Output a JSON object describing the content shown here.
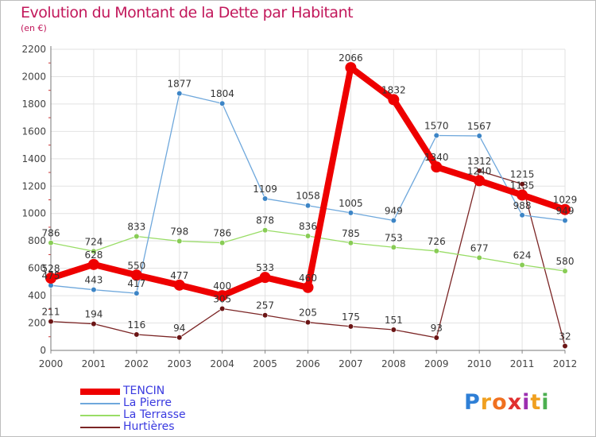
{
  "title": "Evolution du Montant de la Dette par Habitant",
  "subtitle": "(en €)",
  "logo": {
    "text": "Proxiti",
    "letters": [
      {
        "ch": "P",
        "color": "#2e7fd6"
      },
      {
        "ch": "r",
        "color": "#f0a020"
      },
      {
        "ch": "o",
        "color": "#f07020"
      },
      {
        "ch": "x",
        "color": "#e03030"
      },
      {
        "ch": "i",
        "color": "#9c2fb0"
      },
      {
        "ch": "t",
        "color": "#f0a020"
      },
      {
        "ch": "i",
        "color": "#4caf50"
      }
    ]
  },
  "legend": [
    {
      "name": "TENCIN",
      "color": "#ee0000",
      "width": 8
    },
    {
      "name": "La Pierre",
      "color": "#6fa8dc",
      "width": 2
    },
    {
      "name": "La Terrasse",
      "color": "#99dd66",
      "width": 2
    },
    {
      "name": "Hurtières",
      "color": "#7b2525",
      "width": 2
    }
  ],
  "chart_data": {
    "type": "line",
    "title": "Evolution du Montant de la Dette par Habitant",
    "subtitle": "(en €)",
    "x": [
      "2000",
      "2001",
      "2002",
      "2003",
      "2004",
      "2005",
      "2006",
      "2007",
      "2008",
      "2009",
      "2010",
      "2011",
      "2012"
    ],
    "ylim": [
      0,
      2200
    ],
    "yticks": [
      0,
      200,
      400,
      600,
      800,
      1000,
      1200,
      1400,
      1600,
      1800,
      2000,
      2200
    ],
    "grid": true,
    "legend_position": "bottom-left",
    "series": [
      {
        "name": "Hurtières",
        "color": "#7b2525",
        "marker": "#6b1515",
        "values": [
          211,
          194,
          116,
          94,
          305,
          257,
          205,
          175,
          151,
          93,
          1312,
          1215,
          32
        ]
      },
      {
        "name": "La Terrasse",
        "color": "#99dd66",
        "marker": "#88cc55",
        "values": [
          786,
          724,
          833,
          798,
          786,
          878,
          836,
          785,
          753,
          726,
          677,
          624,
          580
        ]
      },
      {
        "name": "La Pierre",
        "color": "#6fa8dc",
        "marker": "#3d85c6",
        "values": [
          475,
          443,
          417,
          1877,
          1804,
          1109,
          1058,
          1005,
          949,
          1570,
          1567,
          988,
          949
        ]
      },
      {
        "name": "TENCIN",
        "color": "#ee0000",
        "marker": "#ee0000",
        "values": [
          528,
          628,
          550,
          477,
          400,
          533,
          460,
          2066,
          1832,
          1340,
          1240,
          1135,
          1029
        ]
      }
    ]
  }
}
